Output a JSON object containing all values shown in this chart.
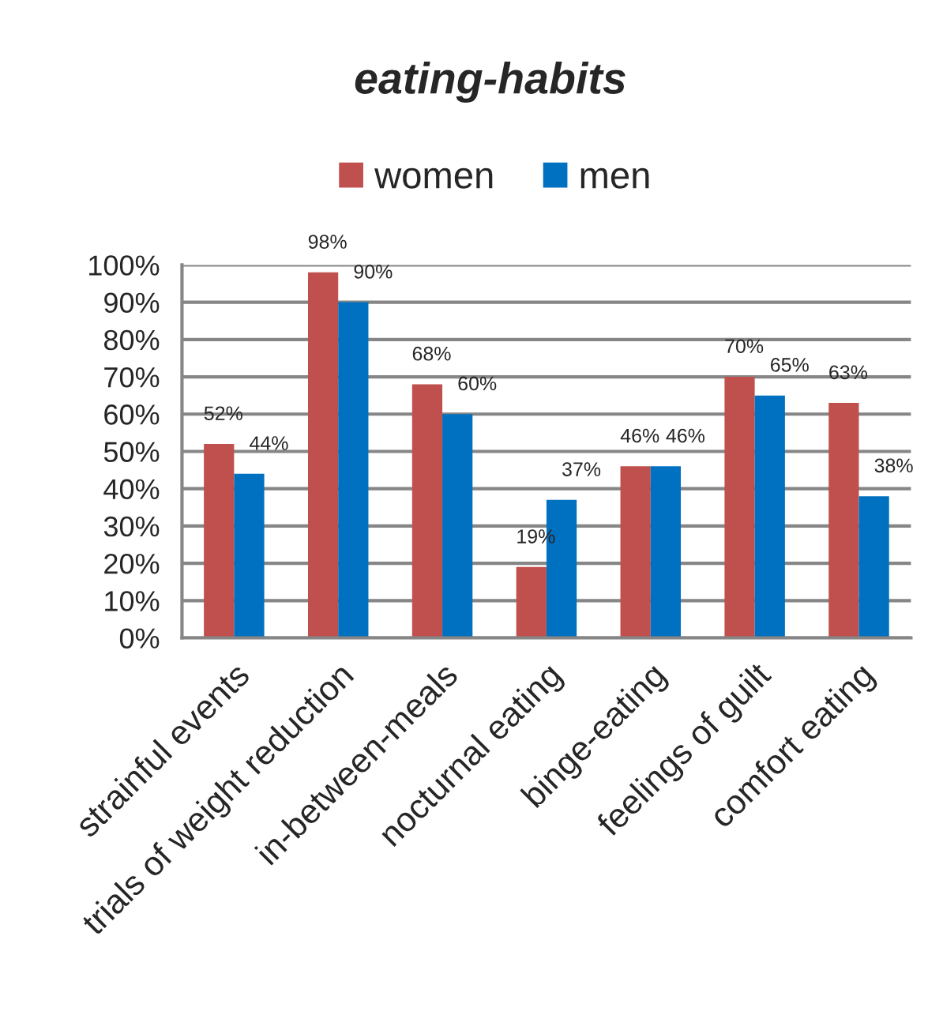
{
  "chart_data": {
    "type": "bar",
    "title": "eating-habits",
    "categories": [
      "strainful events",
      "trials of weight reduction",
      "in-between-meals",
      "nocturnal eating",
      "binge-eating",
      "feelings of guilt",
      "comfort eating"
    ],
    "series": [
      {
        "name": "women",
        "color": "#c0504d",
        "values": [
          52,
          98,
          68,
          19,
          46,
          70,
          63
        ],
        "value_labels": [
          "52%",
          "98%",
          "68%",
          "19%",
          "46%",
          "70%",
          "63%"
        ]
      },
      {
        "name": "men",
        "color": "#0070c0",
        "values": [
          44,
          90,
          60,
          37,
          46,
          65,
          38
        ],
        "value_labels": [
          "44%",
          "90%",
          "60%",
          "37%",
          "46%",
          "65%",
          "38%"
        ]
      }
    ],
    "ylim": [
      0,
      100
    ],
    "yticks": [
      {
        "value": 0,
        "label": "0%"
      },
      {
        "value": 10,
        "label": "10%"
      },
      {
        "value": 20,
        "label": "20%"
      },
      {
        "value": 30,
        "label": "30%"
      },
      {
        "value": 40,
        "label": "40%"
      },
      {
        "value": 50,
        "label": "50%"
      },
      {
        "value": 60,
        "label": "60%"
      },
      {
        "value": 70,
        "label": "70%"
      },
      {
        "value": 80,
        "label": "80%"
      },
      {
        "value": 90,
        "label": "90%"
      },
      {
        "value": 100,
        "label": "100%"
      }
    ],
    "grid": "y",
    "legend": "top"
  }
}
